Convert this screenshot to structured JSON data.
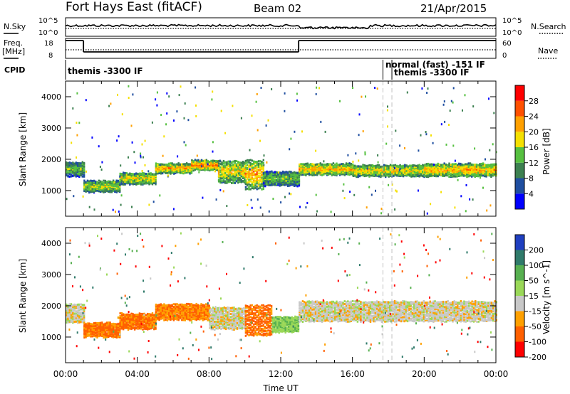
{
  "header": {
    "title": "Fort Hays East (fitACF)",
    "beam": "Beam 02",
    "date": "21/Apr/2015"
  },
  "strips": {
    "nsky_label": "N.Sky",
    "nsky_ticks": [
      "10^5",
      "10^0"
    ],
    "nsearch_label": "N.Search",
    "nsearch_ticks": [
      "10^5",
      "10^0"
    ],
    "freq_label": [
      "Freq.",
      "[MHz]"
    ],
    "freq_ticks": [
      "18",
      "8"
    ],
    "nave_label": "Nave",
    "nave_ticks": [
      "60",
      "0"
    ],
    "cpid_label": "CPID",
    "cpid_entries": [
      {
        "text": "themis -3300 IF",
        "start_h": 0.0
      },
      {
        "text": "normal (fast) -151 IF",
        "start_h": 17.7
      },
      {
        "text": "themis -3300 IF",
        "start_h": 18.2
      }
    ],
    "freq_series": [
      {
        "from_h": 0.0,
        "to_h": 1.0,
        "level": "high"
      },
      {
        "from_h": 1.0,
        "to_h": 13.0,
        "level": "low"
      },
      {
        "from_h": 13.0,
        "to_h": 24.0,
        "level": "high"
      }
    ],
    "freq_high_mhz": 17.0,
    "freq_low_mhz": 10.5,
    "nave_value": 28
  },
  "chart_data": [
    {
      "type": "heatmap",
      "panel": "power",
      "ylabel": "Slant Range [km]",
      "xlabel": "Time UT",
      "x_ticks": [
        "00:00",
        "04:00",
        "08:00",
        "12:00",
        "16:00",
        "20:00",
        "00:00"
      ],
      "y_ticks": [
        1000,
        2000,
        3000,
        4000
      ],
      "xlim_hours": [
        0,
        24
      ],
      "ylim_km": [
        180,
        4500
      ],
      "colorbar": {
        "label": "Power [dB]",
        "ticks": [
          "4",
          "8",
          "12",
          "16",
          "20",
          "24",
          "28"
        ],
        "range": [
          0,
          30
        ],
        "colors": [
          "#0000ff",
          "#1f4ea0",
          "#3c8050",
          "#56c040",
          "#f5e000",
          "#ffa000",
          "#ff5000",
          "#ff0000"
        ]
      },
      "bands": [
        {
          "t0": 0.0,
          "t1": 1.0,
          "r0": 1500,
          "r1": 1950,
          "p": 12
        },
        {
          "t0": 1.0,
          "t1": 3.0,
          "r0": 1000,
          "r1": 1350,
          "p": 14
        },
        {
          "t0": 3.0,
          "t1": 5.0,
          "r0": 1250,
          "r1": 1600,
          "p": 16
        },
        {
          "t0": 5.0,
          "t1": 7.0,
          "r0": 1600,
          "r1": 1900,
          "p": 18
        },
        {
          "t0": 7.0,
          "t1": 8.5,
          "r0": 1700,
          "r1": 2000,
          "p": 20
        },
        {
          "t0": 8.5,
          "t1": 10.0,
          "r0": 1300,
          "r1": 2000,
          "p": 16
        },
        {
          "t0": 10.0,
          "t1": 11.0,
          "r0": 1100,
          "r1": 2050,
          "p": 18
        },
        {
          "t0": 11.0,
          "t1": 13.0,
          "r0": 1200,
          "r1": 1650,
          "p": 12
        },
        {
          "t0": 13.0,
          "t1": 16.0,
          "r0": 1550,
          "r1": 1900,
          "p": 18
        },
        {
          "t0": 16.0,
          "t1": 20.0,
          "r0": 1500,
          "r1": 1850,
          "p": 16
        },
        {
          "t0": 20.0,
          "t1": 24.0,
          "r0": 1500,
          "r1": 1900,
          "p": 18
        }
      ]
    },
    {
      "type": "heatmap",
      "panel": "velocity",
      "ylabel": "Slant Range [km]",
      "xlabel": "Time UT",
      "x_ticks": [
        "00:00",
        "04:00",
        "08:00",
        "12:00",
        "16:00",
        "20:00",
        "00:00"
      ],
      "y_ticks": [
        1000,
        2000,
        3000,
        4000
      ],
      "xlim_hours": [
        0,
        24
      ],
      "ylim_km": [
        180,
        4500
      ],
      "colorbar": {
        "label": "Velocity [m s^-1]",
        "ticks": [
          "200",
          "100",
          "50",
          "15",
          "-15",
          "-50",
          "-100",
          "-200"
        ],
        "range": [
          -250,
          250
        ],
        "colors": [
          "#1f3fc0",
          "#2f7a6a",
          "#57b050",
          "#9ad858",
          "#c8c8c8",
          "#ffa000",
          "#ff6000",
          "#ff0000"
        ]
      },
      "bands": [
        {
          "t0": 0.0,
          "t1": 1.0,
          "r0": 1500,
          "r1": 2100,
          "v": 0
        },
        {
          "t0": 1.0,
          "t1": 3.0,
          "r0": 1050,
          "r1": 1500,
          "v": -60
        },
        {
          "t0": 3.0,
          "t1": 5.0,
          "r0": 1300,
          "r1": 1800,
          "v": -60
        },
        {
          "t0": 5.0,
          "t1": 8.0,
          "r0": 1600,
          "r1": 2100,
          "v": -50
        },
        {
          "t0": 8.0,
          "t1": 10.0,
          "r0": 1300,
          "r1": 2000,
          "v": 0
        },
        {
          "t0": 10.0,
          "t1": 11.5,
          "r0": 1100,
          "r1": 2100,
          "v": -60
        },
        {
          "t0": 11.5,
          "t1": 13.0,
          "r0": 1200,
          "r1": 1700,
          "v": 40
        },
        {
          "t0": 13.0,
          "t1": 24.0,
          "r0": 1550,
          "r1": 2200,
          "v": 0
        }
      ]
    }
  ]
}
